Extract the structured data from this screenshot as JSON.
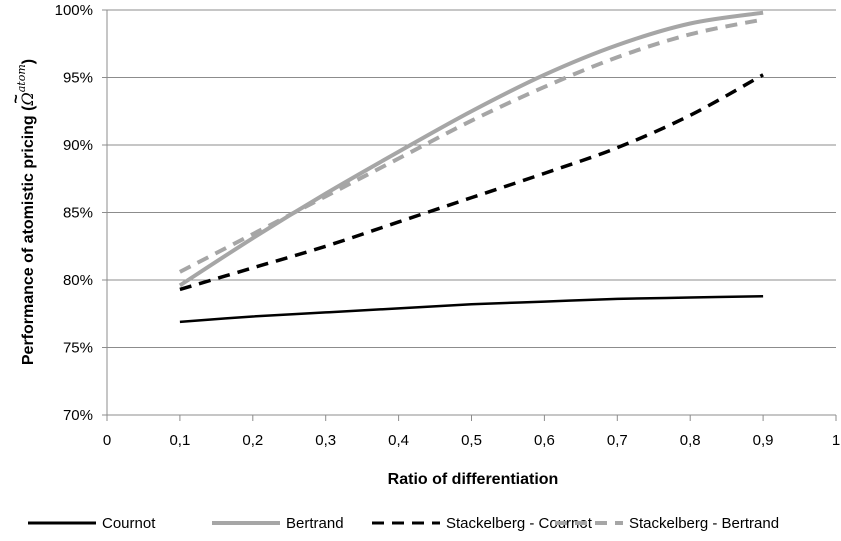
{
  "chart_data": {
    "type": "line",
    "xlabel": "Ratio of differentiation",
    "ylabel": "Performance of atomistic pricing (",
    "ylabel_symbol": "Ω",
    "ylabel_tilde": "~",
    "ylabel_superscript": "atom",
    "ylabel_close": ")",
    "xlim": [
      0,
      1
    ],
    "ylim": [
      0.7,
      1.0
    ],
    "x_ticks": [
      0,
      0.1,
      0.2,
      0.3,
      0.4,
      0.5,
      0.6,
      0.7,
      0.8,
      0.9,
      1.0
    ],
    "x_tick_labels": [
      "0",
      "0,1",
      "0,2",
      "0,3",
      "0,4",
      "0,5",
      "0,6",
      "0,7",
      "0,8",
      "0,9",
      "1"
    ],
    "y_ticks": [
      0.7,
      0.75,
      0.8,
      0.85,
      0.9,
      0.95,
      1.0
    ],
    "y_tick_labels": [
      "70%",
      "75%",
      "80%",
      "85%",
      "90%",
      "95%",
      "100%"
    ],
    "grid": "horizontal",
    "legend_position": "bottom",
    "series": [
      {
        "name": "Cournot",
        "color": "#000000",
        "dash": "solid",
        "x": [
          0.1,
          0.2,
          0.3,
          0.4,
          0.5,
          0.6,
          0.7,
          0.8,
          0.9
        ],
        "values": [
          0.769,
          0.773,
          0.776,
          0.779,
          0.782,
          0.784,
          0.786,
          0.787,
          0.788
        ]
      },
      {
        "name": "Bertrand",
        "color": "#a6a6a6",
        "dash": "solid",
        "x": [
          0.1,
          0.2,
          0.3,
          0.4,
          0.5,
          0.6,
          0.7,
          0.8,
          0.9
        ],
        "values": [
          0.796,
          0.831,
          0.864,
          0.895,
          0.925,
          0.952,
          0.974,
          0.99,
          0.998
        ]
      },
      {
        "name": "Stackelberg - Cournot",
        "color": "#000000",
        "dash": "dashed",
        "x": [
          0.1,
          0.2,
          0.3,
          0.4,
          0.5,
          0.6,
          0.7,
          0.8,
          0.9
        ],
        "values": [
          0.793,
          0.809,
          0.825,
          0.843,
          0.861,
          0.879,
          0.898,
          0.922,
          0.952
        ]
      },
      {
        "name": "Stackelberg - Bertrand",
        "color": "#a6a6a6",
        "dash": "dashed",
        "x": [
          0.1,
          0.2,
          0.3,
          0.4,
          0.5,
          0.6,
          0.7,
          0.8,
          0.9
        ],
        "values": [
          0.806,
          0.834,
          0.862,
          0.89,
          0.918,
          0.943,
          0.965,
          0.982,
          0.993
        ]
      }
    ]
  }
}
